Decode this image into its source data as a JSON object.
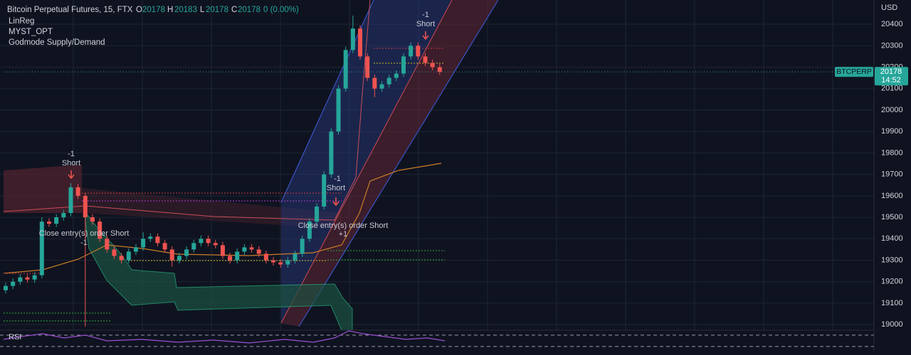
{
  "chart_data": {
    "type": "candlestick",
    "title": "Bitcoin Perpetual Futures, 15, FTX",
    "ohlc_header": {
      "o_label": "O",
      "o": 20178,
      "h_label": "H",
      "h": 20183,
      "l_label": "L",
      "l": 20178,
      "c_label": "C",
      "c": 20178,
      "change": "0 (0.00%)"
    },
    "indicators": [
      "LinReg",
      "MYST_OPT",
      "Godmode Supply/Demand"
    ],
    "axis_unit": "USD",
    "symbol_tag": "BTCPERP",
    "last_price": 20178,
    "countdown": "14:52",
    "annotations": {
      "short_1": [
        "-1",
        "Short"
      ],
      "short_2": [
        "-1",
        "Short"
      ],
      "short_3": [
        "-1",
        "Short"
      ],
      "close_1": "Close entry(s) order Short",
      "close_1_qty": "-1",
      "close_2": "Close entry(s) order Short",
      "close_2_qty": "+1"
    },
    "pane_label": "RSI",
    "up_color": "#26a69a",
    "down_color": "#ef5350",
    "grid": true,
    "ylim": [
      18974,
      20513
    ],
    "yticks": [
      19000,
      19100,
      19200,
      19300,
      19400,
      19500,
      19600,
      19700,
      19800,
      19900,
      20000,
      20100,
      20200,
      20300,
      20400
    ],
    "open": [
      19160,
      19180,
      19200,
      19220,
      19210,
      19230,
      19480,
      19470,
      19500,
      19520,
      19640,
      19600,
      19500,
      19480,
      19400,
      19350,
      19320,
      19300,
      19340,
      19360,
      19400,
      19410,
      19380,
      19350,
      19300,
      19320,
      19350,
      19380,
      19400,
      19380,
      19370,
      19320,
      19300,
      19340,
      19360,
      19350,
      19330,
      19300,
      19290,
      19280,
      19300,
      19330,
      19400,
      19480,
      19550,
      19700,
      19900,
      20100,
      20280,
      20380,
      20250,
      20150,
      20100,
      20120,
      20150,
      20170,
      20250,
      20300,
      20250,
      20220,
      20200
    ],
    "high": [
      19195,
      19215,
      19235,
      19235,
      19245,
      19500,
      19495,
      19515,
      19535,
      19660,
      19655,
      19615,
      19515,
      19495,
      19415,
      19365,
      19335,
      19355,
      19375,
      19430,
      19425,
      19425,
      19395,
      19365,
      19335,
      19365,
      19395,
      19415,
      19415,
      19395,
      19385,
      19335,
      19355,
      19375,
      19375,
      19365,
      19345,
      19315,
      19305,
      19315,
      19345,
      19415,
      19495,
      19565,
      19715,
      19915,
      20115,
      20295,
      20440,
      20395,
      20265,
      20165,
      20135,
      20165,
      20185,
      20265,
      20315,
      20315,
      20265,
      20235,
      20215
    ],
    "low": [
      19145,
      19165,
      19185,
      19195,
      19195,
      19215,
      19455,
      19455,
      19485,
      19505,
      19585,
      18990,
      19465,
      19385,
      19335,
      19305,
      19285,
      19285,
      19325,
      19345,
      19385,
      19365,
      19335,
      19270,
      19285,
      19305,
      19335,
      19365,
      19365,
      19355,
      19305,
      19285,
      19285,
      19325,
      19335,
      19315,
      19285,
      19275,
      19265,
      19265,
      19285,
      19315,
      19385,
      19465,
      19535,
      19685,
      19885,
      20085,
      20265,
      20235,
      20135,
      20060,
      20085,
      20105,
      20135,
      20155,
      20235,
      20235,
      20205,
      20185,
      20163
    ],
    "close": [
      19180,
      19200,
      19220,
      19210,
      19230,
      19480,
      19470,
      19500,
      19520,
      19640,
      19600,
      19500,
      19480,
      19400,
      19350,
      19320,
      19300,
      19340,
      19360,
      19400,
      19410,
      19380,
      19350,
      19300,
      19320,
      19350,
      19380,
      19400,
      19380,
      19370,
      19320,
      19300,
      19340,
      19360,
      19350,
      19330,
      19300,
      19290,
      19280,
      19300,
      19330,
      19400,
      19480,
      19550,
      19700,
      19900,
      20100,
      20280,
      20380,
      20250,
      20150,
      20100,
      20120,
      20150,
      20170,
      20250,
      20300,
      20250,
      20220,
      20200,
      20178
    ]
  }
}
